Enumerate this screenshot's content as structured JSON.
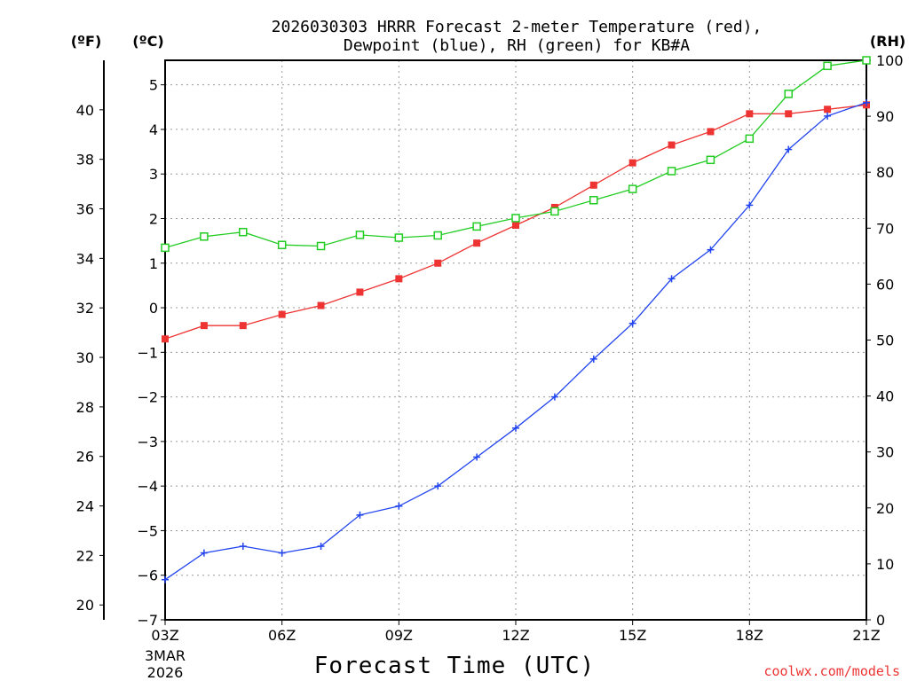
{
  "chart_data": {
    "type": "line",
    "title_line1": "2026030303 HRRR Forecast 2-meter Temperature (red),",
    "title_line2": "Dewpoint (blue), RH (green) for KB#A",
    "units": {
      "fahrenheit": "(ºF)",
      "celsius": "(ºC)",
      "rh": "(RH)"
    },
    "xlabel": "Forecast Time (UTC)",
    "credit": "coolwx.com/models",
    "x_hours": [
      0,
      1,
      2,
      3,
      4,
      5,
      6,
      7,
      8,
      9,
      10,
      11,
      12,
      13,
      14,
      15,
      16,
      17,
      18
    ],
    "x_range": [
      0,
      18
    ],
    "x_ticks": [
      {
        "h": 0,
        "label": "03Z"
      },
      {
        "h": 3,
        "label": "06Z"
      },
      {
        "h": 6,
        "label": "09Z"
      },
      {
        "h": 9,
        "label": "12Z"
      },
      {
        "h": 12,
        "label": "15Z"
      },
      {
        "h": 15,
        "label": "18Z"
      },
      {
        "h": 18,
        "label": "21Z"
      }
    ],
    "x_sub_labels": [
      "3MAR",
      "2026"
    ],
    "ylim_c": [
      -7,
      5.55
    ],
    "y_ticks_c": [
      5,
      4,
      3,
      2,
      1,
      0,
      -1,
      -2,
      -3,
      -4,
      -5,
      -6,
      -7
    ],
    "ylim_f": [
      19.4,
      42
    ],
    "y_ticks_f": [
      40,
      38,
      36,
      34,
      32,
      30,
      28,
      26,
      24,
      22,
      20
    ],
    "ylim_rh": [
      0,
      100
    ],
    "y_ticks_rh": [
      100,
      90,
      80,
      70,
      60,
      50,
      40,
      30,
      20,
      10,
      0
    ],
    "grid": true,
    "series": [
      {
        "name": "Temperature",
        "axis": "celsius",
        "color": "#ee3333",
        "marker": "filled-square",
        "values": [
          -0.7,
          -0.4,
          -0.4,
          -0.15,
          0.05,
          0.35,
          0.65,
          1.0,
          1.45,
          1.85,
          2.25,
          2.75,
          3.25,
          3.65,
          3.95,
          4.35,
          4.35,
          4.45,
          4.55
        ]
      },
      {
        "name": "Dewpoint",
        "axis": "celsius",
        "color": "#2244ee",
        "marker": "plus",
        "values": [
          -6.1,
          -5.5,
          -5.35,
          -5.5,
          -5.35,
          -4.65,
          -4.45,
          -4.0,
          -3.35,
          -2.7,
          -2.0,
          -1.15,
          -0.35,
          0.65,
          1.3,
          2.3,
          3.55,
          4.3,
          4.6
        ]
      },
      {
        "name": "RH",
        "axis": "rh",
        "color": "#22cc22",
        "marker": "open-square",
        "values": [
          66.5,
          68.5,
          69.3,
          67.0,
          66.8,
          68.8,
          68.3,
          68.7,
          70.3,
          71.8,
          73.0,
          75.0,
          77.0,
          80.2,
          82.2,
          86.0,
          94.0,
          99.0,
          100.0
        ]
      }
    ]
  }
}
